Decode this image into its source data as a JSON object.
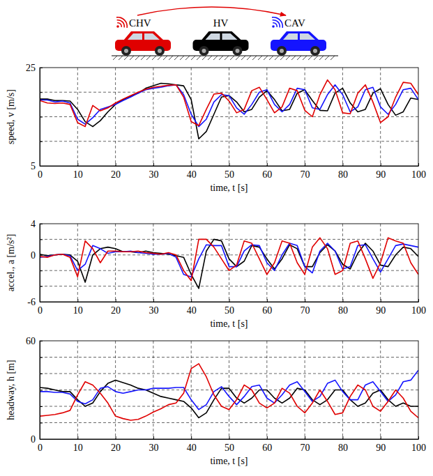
{
  "header": {
    "vehicles": [
      {
        "label": "CHV",
        "color": "#e00000",
        "connected": true
      },
      {
        "label": "HV",
        "color": "#000000",
        "connected": false
      },
      {
        "label": "CAV",
        "color": "#1414ff",
        "connected": true
      }
    ]
  },
  "chart_data": [
    {
      "type": "line",
      "xlabel": "time, t [s]",
      "ylabel": "speed, v [m/s]",
      "xlim": [
        0,
        100
      ],
      "ylim": [
        5,
        25
      ],
      "grid": true,
      "xticks": [
        0,
        10,
        20,
        30,
        40,
        50,
        60,
        70,
        80,
        90,
        100
      ],
      "yticks": [
        5,
        {
          "value": 10,
          "label": null
        },
        {
          "value": 15,
          "label": null
        },
        {
          "value": 20,
          "label": null
        },
        25
      ],
      "x": [
        0,
        2,
        4,
        6,
        8,
        10,
        12,
        14,
        16,
        18,
        20,
        22,
        24,
        26,
        28,
        30,
        32,
        34,
        36,
        38,
        40,
        42,
        44,
        46,
        48,
        50,
        52,
        54,
        56,
        58,
        60,
        62,
        64,
        66,
        68,
        70,
        72,
        74,
        76,
        78,
        80,
        82,
        84,
        86,
        88,
        90,
        92,
        94,
        96,
        98,
        100
      ],
      "series": [
        {
          "color": "#000000",
          "values": [
            18.6,
            18.6,
            18.3,
            18.3,
            18.2,
            16.5,
            14.0,
            13.0,
            14.2,
            16.0,
            17.5,
            18.5,
            19.2,
            19.8,
            20.8,
            21.3,
            21.8,
            21.7,
            21.5,
            21.3,
            18.5,
            10.5,
            12.0,
            15.5,
            19.0,
            19.3,
            18.0,
            16.0,
            16.5,
            19.0,
            20.3,
            18.5,
            16.2,
            16.5,
            19.8,
            20.5,
            18.3,
            16.3,
            16.2,
            19.8,
            20.8,
            17.8,
            16.0,
            16.5,
            19.8,
            20.7,
            17.5,
            15.3,
            16.0,
            18.8,
            18.5
          ]
        },
        {
          "color": "#1414ff",
          "values": [
            18.4,
            18.4,
            18.0,
            18.2,
            17.8,
            14.5,
            13.5,
            14.8,
            16.5,
            17.0,
            17.5,
            18.3,
            19.0,
            19.8,
            20.5,
            20.8,
            21.0,
            21.3,
            21.5,
            19.5,
            15.5,
            13.0,
            14.5,
            18.0,
            19.5,
            19.3,
            16.8,
            15.5,
            17.5,
            20.0,
            20.5,
            17.5,
            16.0,
            17.5,
            20.8,
            20.5,
            16.8,
            16.5,
            19.5,
            21.5,
            19.5,
            16.0,
            17.0,
            20.5,
            21.0,
            17.0,
            15.5,
            17.5,
            20.5,
            20.8,
            18.5
          ]
        },
        {
          "color": "#e00000",
          "values": [
            18.3,
            17.8,
            17.7,
            17.8,
            17.5,
            13.8,
            13.0,
            17.3,
            16.2,
            16.8,
            17.8,
            18.6,
            19.3,
            20.0,
            20.6,
            21.0,
            21.2,
            21.4,
            21.5,
            19.0,
            14.0,
            13.2,
            16.5,
            19.6,
            19.8,
            18.2,
            15.8,
            16.5,
            20.3,
            21.0,
            18.5,
            15.8,
            17.0,
            20.8,
            20.3,
            16.3,
            15.0,
            19.5,
            22.5,
            20.5,
            15.8,
            15.6,
            19.8,
            21.5,
            18.0,
            13.8,
            15.0,
            19.0,
            22.0,
            21.8,
            19.5
          ]
        }
      ]
    },
    {
      "type": "line",
      "xlabel": "time, t [s]",
      "ylabel": "accel., a [m/s²]",
      "xlim": [
        0,
        100
      ],
      "ylim": [
        -6,
        4
      ],
      "grid": true,
      "xticks": [
        0,
        10,
        20,
        30,
        40,
        50,
        60,
        70,
        80,
        90,
        100
      ],
      "yticks": [
        -6,
        {
          "value": -4,
          "label": null
        },
        {
          "value": -2,
          "label": null
        },
        0,
        {
          "value": 2,
          "label": null
        },
        4
      ],
      "x": [
        0,
        2,
        4,
        6,
        8,
        10,
        12,
        14,
        16,
        18,
        20,
        22,
        24,
        26,
        28,
        30,
        32,
        34,
        36,
        38,
        40,
        42,
        44,
        46,
        48,
        50,
        52,
        54,
        56,
        58,
        60,
        62,
        64,
        66,
        68,
        70,
        72,
        74,
        76,
        78,
        80,
        82,
        84,
        86,
        88,
        90,
        92,
        94,
        96,
        98,
        100
      ],
      "series": [
        {
          "color": "#000000",
          "values": [
            0.1,
            -0.1,
            0.0,
            0.1,
            0.0,
            -0.8,
            -3.5,
            0.0,
            0.8,
            1.0,
            0.8,
            0.4,
            0.4,
            0.3,
            0.5,
            0.3,
            0.2,
            0.1,
            -0.1,
            -0.3,
            -2.5,
            -4.3,
            0.5,
            2.0,
            1.8,
            -0.5,
            -1.5,
            -0.8,
            1.2,
            1.0,
            -0.5,
            -1.8,
            -0.5,
            1.3,
            0.8,
            -1.5,
            -1.5,
            0.3,
            1.3,
            0.5,
            -1.2,
            -1.8,
            0.2,
            1.5,
            0.5,
            -1.3,
            -1.5,
            0.0,
            1.0,
            0.8,
            -0.2
          ]
        },
        {
          "color": "#1414ff",
          "values": [
            -0.3,
            -0.2,
            0.0,
            0.1,
            -0.1,
            -2.0,
            -1.2,
            1.2,
            0.8,
            0.2,
            0.4,
            0.4,
            0.5,
            0.3,
            0.2,
            0.1,
            0.1,
            0.2,
            -0.3,
            -2.5,
            -2.8,
            -0.5,
            1.3,
            1.2,
            1.2,
            -1.5,
            -1.5,
            0.5,
            1.3,
            1.2,
            -1.0,
            -2.0,
            0.0,
            1.5,
            1.2,
            -1.5,
            -2.3,
            0.5,
            1.5,
            0.5,
            -1.8,
            -1.5,
            1.2,
            1.3,
            -0.5,
            -2.2,
            -0.5,
            1.2,
            1.4,
            1.2,
            1.0
          ]
        },
        {
          "color": "#e00000",
          "values": [
            -0.2,
            -0.3,
            0.0,
            0.1,
            -0.3,
            -2.8,
            1.8,
            0.8,
            -1.0,
            0.5,
            0.5,
            0.4,
            0.4,
            0.5,
            0.3,
            0.2,
            0.1,
            0.3,
            0.0,
            -2.0,
            -3.3,
            2.0,
            2.0,
            1.0,
            -0.5,
            -2.0,
            -1.3,
            1.8,
            1.5,
            -0.5,
            -2.5,
            -1.0,
            1.8,
            1.5,
            -1.0,
            -2.5,
            1.0,
            2.2,
            0.8,
            -2.5,
            -2.0,
            1.5,
            1.8,
            -0.5,
            -3.0,
            -1.0,
            2.2,
            1.8,
            1.5,
            -1.0,
            -2.5
          ]
        }
      ]
    },
    {
      "type": "line",
      "xlabel": "time, t [s]",
      "ylabel": "headway, h [m]",
      "xlim": [
        0,
        100
      ],
      "ylim": [
        0,
        60
      ],
      "grid": true,
      "xticks": [
        0,
        10,
        20,
        30,
        40,
        50,
        60,
        70,
        80,
        90,
        100
      ],
      "yticks": [
        0,
        {
          "value": 10,
          "label": null
        },
        {
          "value": 20,
          "label": null
        },
        {
          "value": 30,
          "label": null
        },
        {
          "value": 40,
          "label": null
        },
        {
          "value": 50,
          "label": null
        },
        60
      ],
      "x": [
        0,
        2,
        4,
        6,
        8,
        10,
        12,
        14,
        16,
        18,
        20,
        22,
        24,
        26,
        28,
        30,
        32,
        34,
        36,
        38,
        40,
        42,
        44,
        46,
        48,
        50,
        52,
        54,
        56,
        58,
        60,
        62,
        64,
        66,
        68,
        70,
        72,
        74,
        76,
        78,
        80,
        82,
        84,
        86,
        88,
        90,
        92,
        94,
        96,
        98,
        100
      ],
      "series": [
        {
          "color": "#000000",
          "values": [
            31.5,
            31,
            30,
            29,
            29,
            24,
            20,
            22,
            29,
            34,
            36,
            34.5,
            33,
            31,
            30,
            28,
            26,
            25,
            24,
            23,
            19,
            13,
            16,
            24,
            31,
            31,
            25,
            22,
            25,
            30,
            30,
            25,
            22,
            25,
            31,
            30,
            24,
            21,
            24,
            30,
            30,
            24,
            20,
            22,
            28,
            30,
            24,
            20,
            22,
            20,
            20
          ]
        },
        {
          "color": "#1414ff",
          "values": [
            29,
            29,
            28.5,
            28.5,
            27.5,
            23,
            21.5,
            24,
            31,
            32,
            29,
            28,
            29,
            30,
            30,
            31,
            31,
            31,
            31.5,
            31.5,
            24,
            18,
            21,
            29,
            32,
            26,
            21,
            26,
            32,
            33,
            25,
            22,
            27,
            33,
            35,
            29,
            23,
            26,
            34,
            36,
            29,
            24,
            24,
            33,
            35,
            29,
            23,
            27,
            35,
            36,
            42
          ]
        },
        {
          "color": "#e00000",
          "values": [
            14,
            14.5,
            15,
            16,
            17.5,
            27,
            35,
            33,
            28,
            22,
            14,
            12.5,
            11.5,
            12,
            14,
            16.5,
            18.5,
            21,
            22,
            28,
            43,
            46,
            38,
            27,
            20,
            18,
            24,
            33,
            30,
            22,
            19,
            22,
            31,
            28,
            20,
            16,
            22,
            30,
            23,
            15,
            16,
            26,
            33,
            30,
            20,
            17,
            23,
            30,
            25,
            17,
            13
          ]
        }
      ]
    }
  ]
}
